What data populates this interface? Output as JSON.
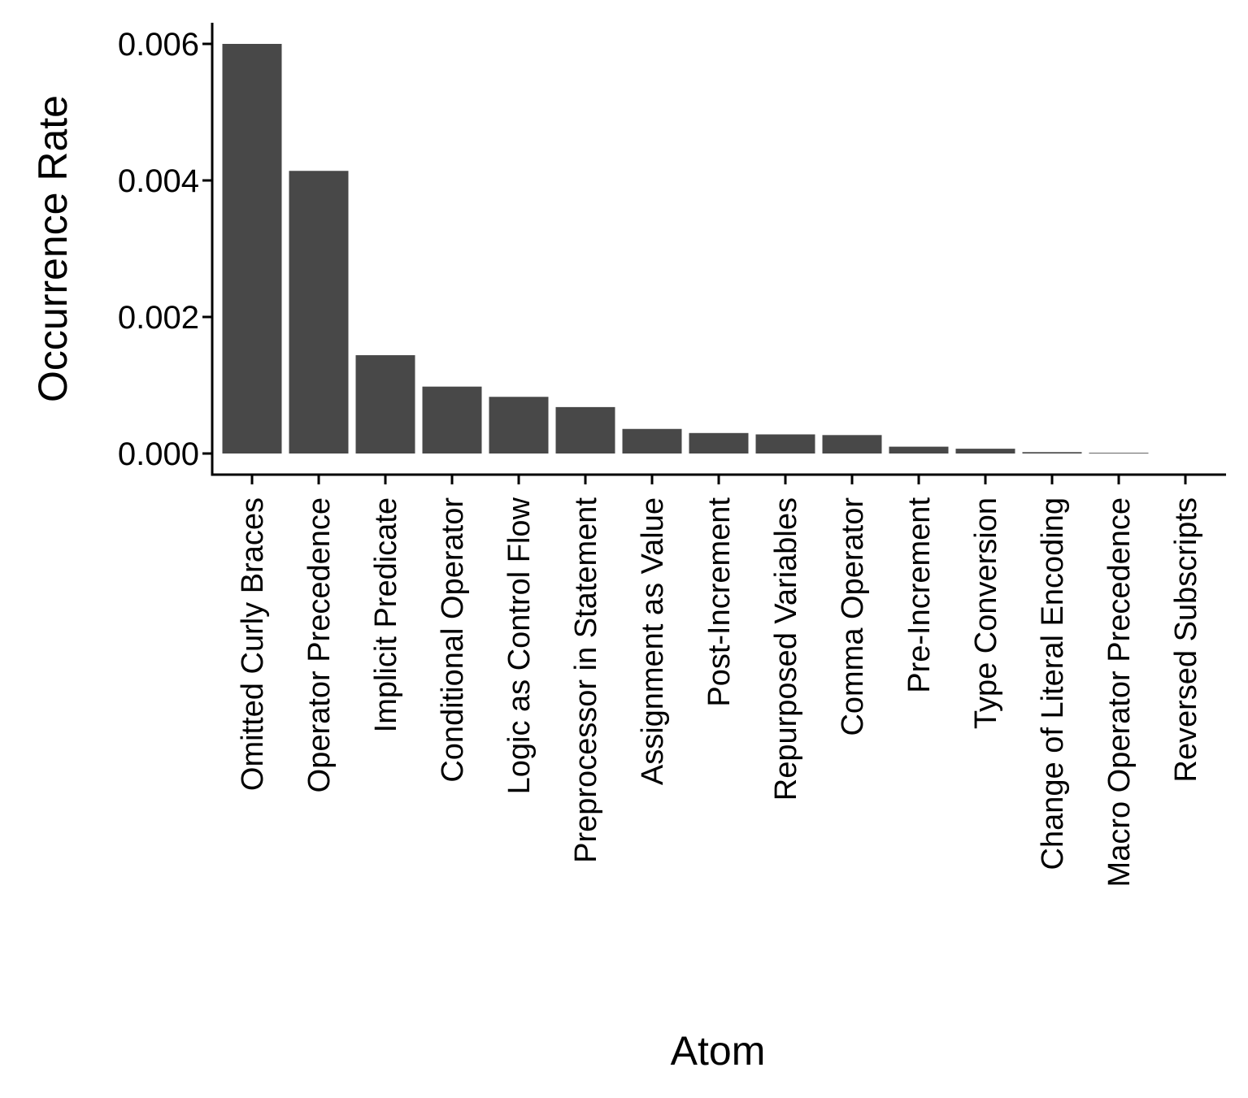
{
  "chart_data": {
    "type": "bar",
    "title": "",
    "xlabel": "Atom",
    "ylabel": "Occurrence Rate",
    "ylim": [
      0,
      0.006
    ],
    "yticks": [
      "0.000",
      "0.002",
      "0.004",
      "0.006"
    ],
    "ytick_values": [
      0,
      0.002,
      0.004,
      0.006
    ],
    "grid": false,
    "legend": "none",
    "bar_color": "#484848",
    "categories": [
      "Omitted Curly Braces",
      "Operator Precedence",
      "Implicit Predicate",
      "Conditional Operator",
      "Logic as Control Flow",
      "Preprocessor in Statement",
      "Assignment as Value",
      "Post-Increment",
      "Repurposed Variables",
      "Comma Operator",
      "Pre-Increment",
      "Type Conversion",
      "Change of Literal Encoding",
      "Macro Operator Precedence",
      "Reversed Subscripts"
    ],
    "values": [
      0.006,
      0.00414,
      0.00144,
      0.00098,
      0.00083,
      0.00068,
      0.00036,
      0.0003,
      0.00028,
      0.00027,
      0.0001,
      7e-05,
      2e-05,
      1e-05,
      0
    ]
  }
}
